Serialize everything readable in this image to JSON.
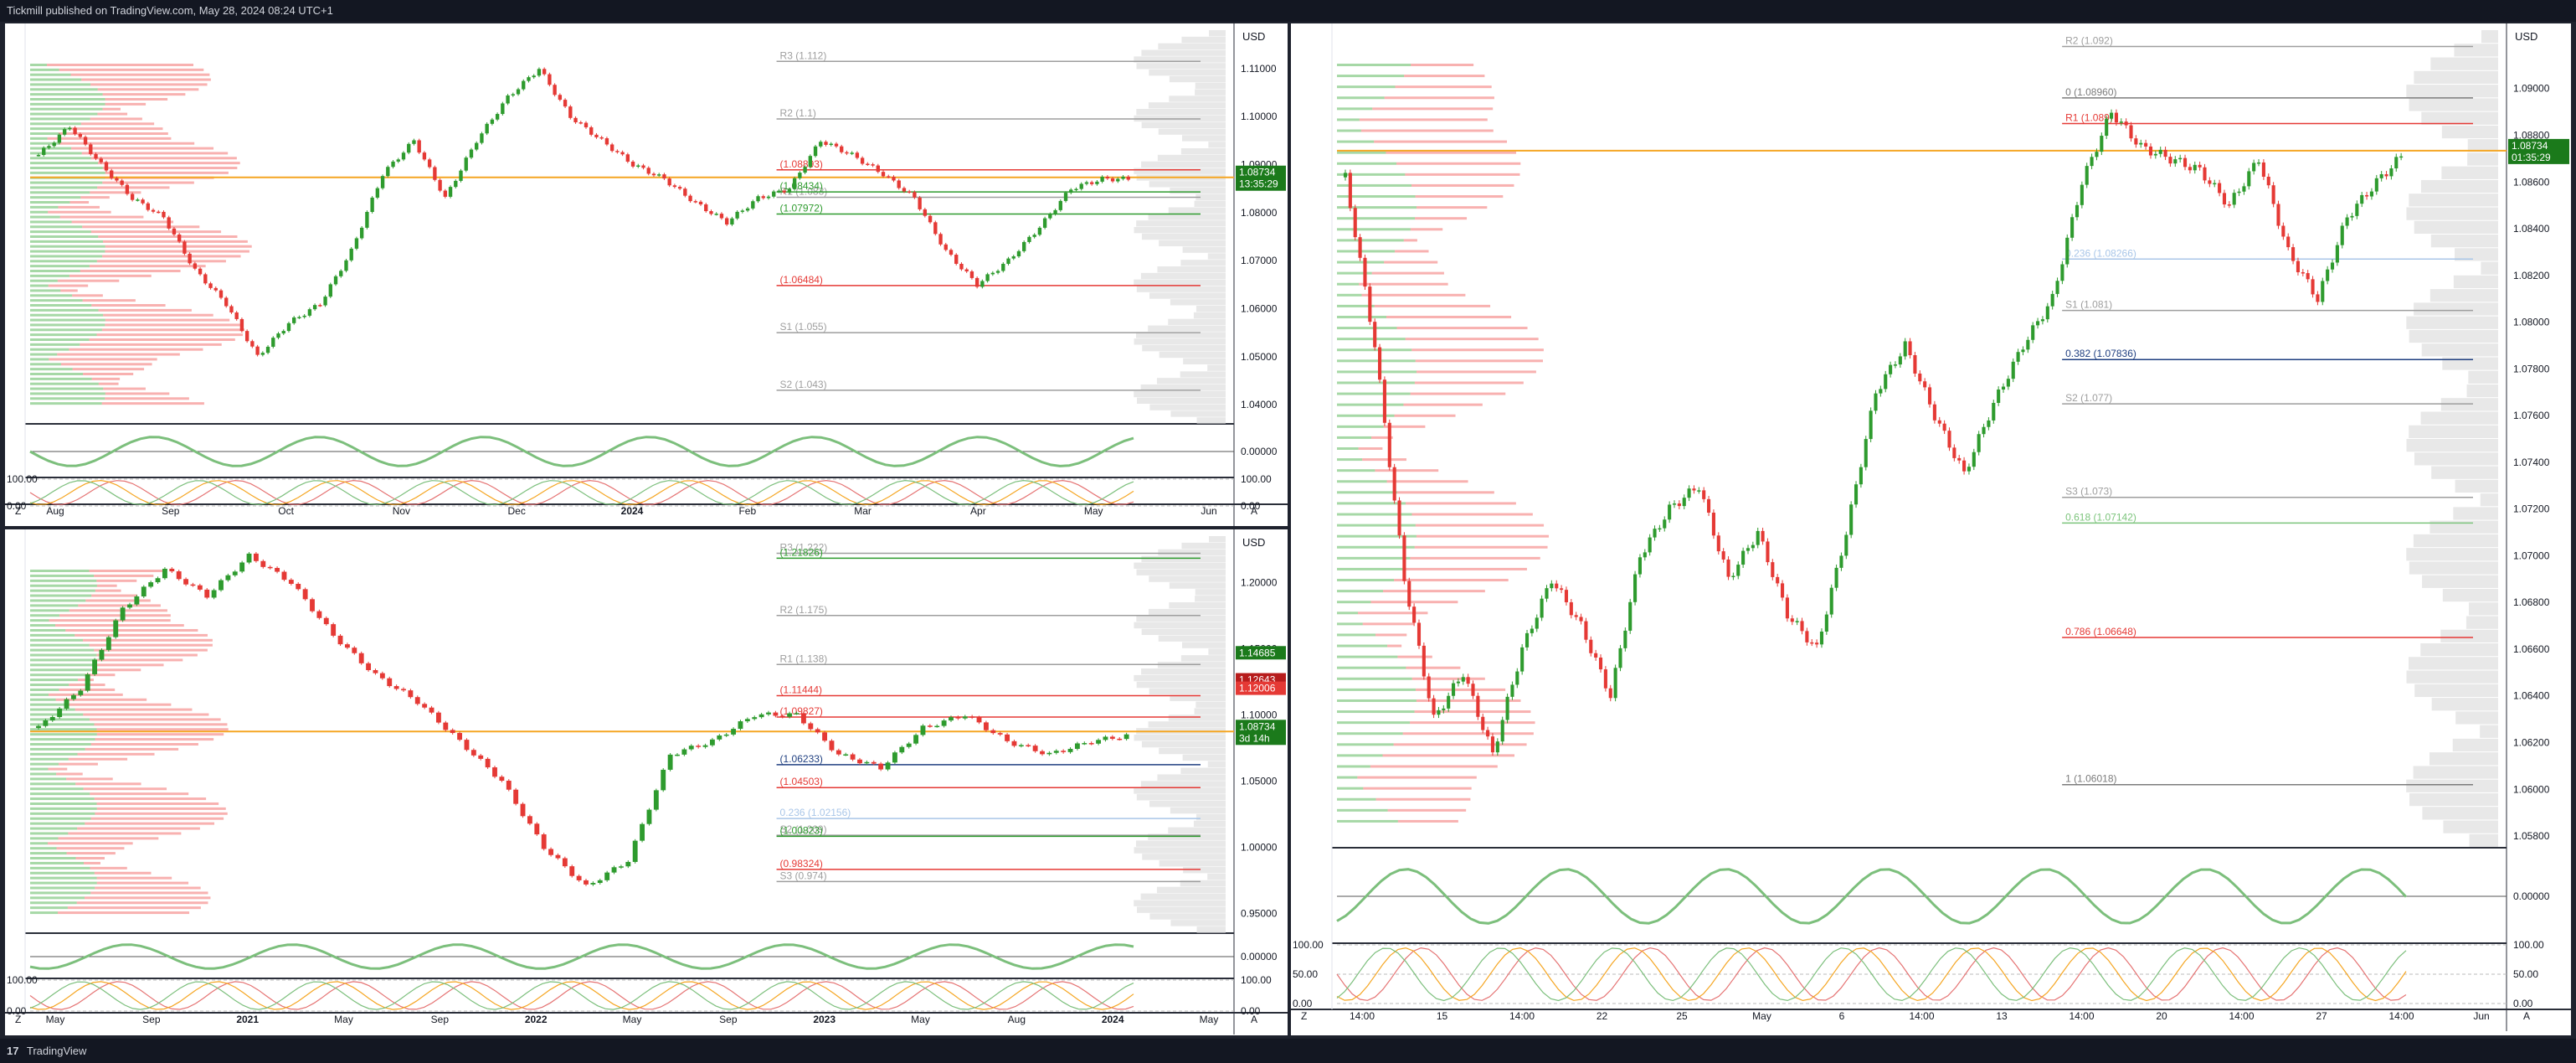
{
  "header": {
    "publisher": "Tickmill published on TradingView.com, May 28, 2024 08:24 UTC+1"
  },
  "footer": {
    "brand": "TradingView",
    "logo_text": "17"
  },
  "colors": {
    "bull": "#2e9b2e",
    "bear": "#e53935",
    "orange": "#f5a623",
    "blue": "#4a90e2",
    "pivot": "#9e9e9e"
  },
  "chart_data": [
    {
      "id": "daily",
      "type": "line",
      "title": "",
      "currency": "USD",
      "x_ticks": [
        "Aug",
        "Sep",
        "Oct",
        "Nov",
        "Dec",
        "2024",
        "Feb",
        "Mar",
        "Apr",
        "May",
        "Jun"
      ],
      "y_ticks": [
        "1.11000",
        "1.10000",
        "1.09000",
        "1.08000",
        "1.07000",
        "1.06000",
        "1.05000",
        "1.04000"
      ],
      "ylim": [
        1.036,
        1.118
      ],
      "series": [
        {
          "values": [
            1.092,
            1.098,
            1.09,
            1.083,
            1.079,
            1.068,
            1.061,
            1.05,
            1.057,
            1.061,
            1.072,
            1.088,
            1.095,
            1.083,
            1.095,
            1.104,
            1.11,
            1.1,
            1.095,
            1.09,
            1.087,
            1.082,
            1.078,
            1.083,
            1.085,
            1.095,
            1.092,
            1.088,
            1.083,
            1.072,
            1.065,
            1.07,
            1.077,
            1.085,
            1.087,
            1.087
          ]
        }
      ],
      "levels": [
        {
          "label": "R3 (1.112)",
          "value": 1.1115,
          "color": "#9e9e9e"
        },
        {
          "label": "R2 (1.1)",
          "value": 1.0995,
          "color": "#9e9e9e"
        },
        {
          "label": "R1 (1.083)",
          "value": 1.0832,
          "color": "#9e9e9e"
        },
        {
          "label": "S1 (1.055)",
          "value": 1.055,
          "color": "#9e9e9e"
        },
        {
          "label": "S2 (1.043)",
          "value": 1.043,
          "color": "#9e9e9e"
        },
        {
          "label": "(1.08893)",
          "value": 1.0889,
          "color": "#e53935"
        },
        {
          "label": "(1.08434)",
          "value": 1.0843,
          "color": "#2e9b2e"
        },
        {
          "label": "(1.07972)",
          "value": 1.0797,
          "color": "#2e9b2e"
        },
        {
          "label": "(1.06484)",
          "value": 1.0648,
          "color": "#e53935"
        }
      ],
      "price_badge": {
        "price": "1.08734",
        "timer": "13:35:29"
      }
    },
    {
      "id": "weekly",
      "type": "line",
      "title": "",
      "currency": "USD",
      "x_ticks": [
        "May",
        "Sep",
        "2021",
        "May",
        "Sep",
        "2022",
        "May",
        "Sep",
        "2023",
        "May",
        "Aug",
        "2024",
        "May"
      ],
      "y_ticks": [
        "1.20000",
        "1.15000",
        "1.10000",
        "1.05000",
        "1.00000",
        "0.95000"
      ],
      "ylim": [
        0.935,
        1.235
      ],
      "series": [
        {
          "values": [
            1.09,
            1.12,
            1.18,
            1.21,
            1.19,
            1.22,
            1.2,
            1.16,
            1.13,
            1.11,
            1.08,
            1.05,
            1.0,
            0.97,
            0.99,
            1.07,
            1.08,
            1.1,
            1.1,
            1.07,
            1.06,
            1.09,
            1.1,
            1.08,
            1.07,
            1.08,
            1.085
          ]
        }
      ],
      "levels": [
        {
          "label": "R3 (1.222)",
          "value": 1.222,
          "color": "#9e9e9e"
        },
        {
          "label": "R2 (1.175)",
          "value": 1.175,
          "color": "#9e9e9e"
        },
        {
          "label": "R1 (1.138)",
          "value": 1.138,
          "color": "#9e9e9e"
        },
        {
          "label": "S2 (1.009)",
          "value": 1.009,
          "color": "#9e9e9e"
        },
        {
          "label": "S3 (0.974)",
          "value": 0.974,
          "color": "#9e9e9e"
        },
        {
          "label": "(1.21826)",
          "value": 1.2183,
          "color": "#2e9b2e"
        },
        {
          "label": "(1.11444)",
          "value": 1.1144,
          "color": "#e53935"
        },
        {
          "label": "(1.09827)",
          "value": 1.0983,
          "color": "#e53935"
        },
        {
          "label": "(1.04503)",
          "value": 1.045,
          "color": "#e53935"
        },
        {
          "label": "(1.00823)",
          "value": 1.0082,
          "color": "#2e9b2e"
        },
        {
          "label": "(0.98324)",
          "value": 0.9832,
          "color": "#e53935"
        },
        {
          "label": "0.236 (1.02156)",
          "value": 1.0216,
          "color": "#a9c6e8"
        },
        {
          "label": "(1.06233)",
          "value": 1.0623,
          "color": "#1f3f80"
        }
      ],
      "right_tags": [
        "1.14685",
        "1.12643",
        "1.12006"
      ],
      "price_badge": {
        "price": "1.08734",
        "timer": "3d 14h"
      }
    },
    {
      "id": "hourly",
      "type": "line",
      "title": "",
      "currency": "USD",
      "x_ticks": [
        "14:00",
        "15",
        "14:00",
        "22",
        "25",
        "May",
        "6",
        "14:00",
        "13",
        "14:00",
        "20",
        "14:00",
        "27",
        "14:00",
        "Jun"
      ],
      "y_ticks": [
        "1.09000",
        "1.08800",
        "1.08600",
        "1.08400",
        "1.08200",
        "1.08000",
        "1.07800",
        "1.07600",
        "1.07400",
        "1.07200",
        "1.07000",
        "1.06800",
        "1.06600",
        "1.06400",
        "1.06200",
        "1.06000",
        "1.05800"
      ],
      "ylim": [
        1.0575,
        1.0925
      ],
      "series": [
        {
          "values": [
            1.0862,
            1.079,
            1.069,
            1.063,
            1.065,
            1.0615,
            1.066,
            1.069,
            1.067,
            1.064,
            1.07,
            1.072,
            1.073,
            1.069,
            1.071,
            1.0675,
            1.066,
            1.071,
            1.077,
            1.079,
            1.076,
            1.0735,
            1.0765,
            1.079,
            1.081,
            1.086,
            1.089,
            1.0875,
            1.087,
            1.0865,
            1.085,
            1.087,
            1.083,
            1.081,
            1.0845,
            1.086,
            1.0873
          ]
        }
      ],
      "levels": [
        {
          "label": "R2 (1.092)",
          "value": 1.0918,
          "color": "#9e9e9e"
        },
        {
          "label": "R1 (1.089)",
          "value": 1.0885,
          "color": "#e53935"
        },
        {
          "label": "S1 (1.081)",
          "value": 1.0805,
          "color": "#9e9e9e"
        },
        {
          "label": "S2 (1.077)",
          "value": 1.0765,
          "color": "#9e9e9e"
        },
        {
          "label": "S3 (1.073)",
          "value": 1.0725,
          "color": "#9e9e9e"
        },
        {
          "label": "0 (1.08960)",
          "value": 1.0896,
          "color": "#7c7c7c"
        },
        {
          "label": "0.236 (1.08266)",
          "value": 1.0827,
          "color": "#a9c6e8"
        },
        {
          "label": "0.382 (1.07836)",
          "value": 1.0784,
          "color": "#1f3f80"
        },
        {
          "label": "0.618 (1.07142)",
          "value": 1.0714,
          "color": "#7cc47c"
        },
        {
          "label": "0.786 (1.06648)",
          "value": 1.0665,
          "color": "#e53935"
        },
        {
          "label": "1 (1.06018)",
          "value": 1.0602,
          "color": "#7c7c7c"
        }
      ],
      "price_badge": {
        "price": "1.08734",
        "timer": "01:35:29"
      }
    }
  ],
  "indicators": {
    "zero_label": "0.00000",
    "stoch_labels": [
      "100.00",
      "0.00"
    ],
    "stoch_labels_hourly": [
      "100.00",
      "50.00",
      "0.00"
    ]
  },
  "axis_corner": {
    "left": "Z",
    "right": "A"
  }
}
